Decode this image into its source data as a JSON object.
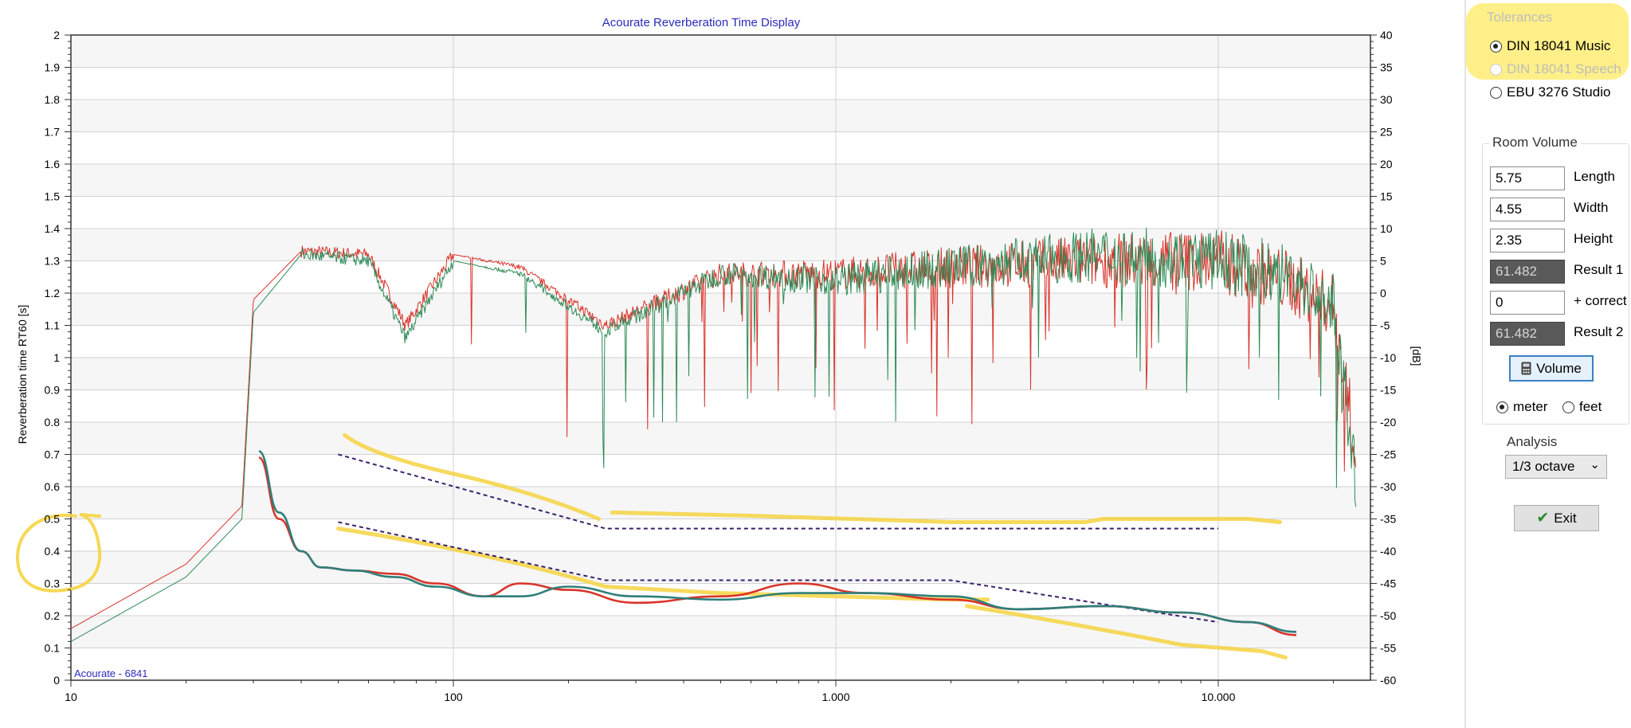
{
  "chart_data": {
    "type": "line",
    "title": "Acourate Reverberation Time Display",
    "ylabel_left": "Reverberation time RT60 [s]",
    "ylabel_right": "[dB]",
    "watermark": "Acourate - 6841",
    "x_scale": "log",
    "xlim": [
      10,
      25000
    ],
    "ylim_left": [
      0,
      2
    ],
    "ylim_right": [
      -60,
      40
    ],
    "x_ticks": [
      {
        "value": 10,
        "label": "10"
      },
      {
        "value": 100,
        "label": "100"
      },
      {
        "value": 1000,
        "label": "1.000"
      },
      {
        "value": 10000,
        "label": "10.000"
      }
    ],
    "y_ticks_left": [
      "0",
      "0.1",
      "0.2",
      "0.3",
      "0.4",
      "0.5",
      "0.6",
      "0.7",
      "0.8",
      "0.9",
      "1",
      "1.1",
      "1.2",
      "1.3",
      "1.4",
      "1.5",
      "1.6",
      "1.7",
      "1.8",
      "1.9",
      "2"
    ],
    "y_ticks_right": [
      "-60",
      "-55",
      "-50",
      "-45",
      "-40",
      "-35",
      "-30",
      "-25",
      "-20",
      "-15",
      "-10",
      "-5",
      "0",
      "5",
      "10",
      "15",
      "20",
      "25",
      "30",
      "35",
      "40"
    ],
    "grid": true,
    "colors": {
      "red": "#d9342b",
      "green": "#2e8b57",
      "teal": "#2e7f7a",
      "tolerance": "#3a1f6e",
      "highlight": "#f5d442",
      "title": "#2b2bbf"
    },
    "spectrum_db": {
      "x": [
        10,
        20,
        28,
        30,
        40,
        60,
        75,
        100,
        150,
        250,
        500,
        1000,
        2000,
        5000,
        10000,
        15000,
        20000,
        23000
      ],
      "red": [
        -52,
        -42,
        -33,
        -1,
        6.5,
        6,
        -5,
        6,
        4,
        -5,
        3,
        3,
        4,
        5,
        5,
        2,
        -2,
        -25
      ],
      "green": [
        -54,
        -44,
        -35,
        -3,
        6,
        5,
        -7,
        5,
        3,
        -6,
        3,
        2,
        4,
        6,
        5,
        3,
        -2,
        -30
      ]
    },
    "series": [
      {
        "color": "red",
        "x": [
          31,
          35,
          40,
          45,
          55,
          70,
          90,
          120,
          150,
          200,
          300,
          500,
          800,
          1200,
          2000,
          3000,
          5000,
          8000,
          12000,
          16000
        ],
        "values": [
          0.69,
          0.5,
          0.4,
          0.35,
          0.34,
          0.33,
          0.3,
          0.26,
          0.3,
          0.28,
          0.24,
          0.26,
          0.3,
          0.27,
          0.25,
          0.22,
          0.23,
          0.21,
          0.18,
          0.14
        ]
      },
      {
        "color": "teal",
        "x": [
          31,
          35,
          40,
          45,
          55,
          70,
          90,
          120,
          150,
          200,
          300,
          500,
          800,
          1200,
          2000,
          3000,
          5000,
          8000,
          12000,
          16000
        ],
        "values": [
          0.71,
          0.52,
          0.4,
          0.35,
          0.34,
          0.32,
          0.29,
          0.26,
          0.26,
          0.29,
          0.26,
          0.25,
          0.27,
          0.27,
          0.26,
          0.22,
          0.23,
          0.21,
          0.18,
          0.15
        ]
      }
    ],
    "tolerance_upper": {
      "x": [
        50,
        250,
        10000
      ],
      "values": [
        0.7,
        0.47,
        0.47
      ]
    },
    "tolerance_lower": {
      "x": [
        50,
        250,
        2000,
        10000
      ],
      "values": [
        0.49,
        0.31,
        0.31,
        0.18
      ]
    }
  },
  "tolerances": {
    "title": "Tolerances",
    "options": [
      {
        "label": "DIN 18041 Music",
        "selected": true,
        "enabled": true
      },
      {
        "label": "DIN 18041 Speech",
        "selected": false,
        "enabled": false
      },
      {
        "label": "EBU 3276 Studio",
        "selected": false,
        "enabled": true
      }
    ]
  },
  "room_volume": {
    "title": "Room Volume",
    "fields": [
      {
        "value": "5.75",
        "label": "Length",
        "result": false
      },
      {
        "value": "4.55",
        "label": "Width",
        "result": false
      },
      {
        "value": "2.35",
        "label": "Height",
        "result": false
      },
      {
        "value": "61.482",
        "label": "Result 1",
        "result": true
      },
      {
        "value": "0",
        "label": "+ correct",
        "result": false
      },
      {
        "value": "61.482",
        "label": "Result 2",
        "result": true
      }
    ],
    "volume_button": "Volume",
    "units": [
      {
        "label": "meter",
        "selected": true
      },
      {
        "label": "feet",
        "selected": false
      }
    ]
  },
  "analysis": {
    "title": "Analysis",
    "selected": "1/3 octave"
  },
  "exit_button": "Exit"
}
